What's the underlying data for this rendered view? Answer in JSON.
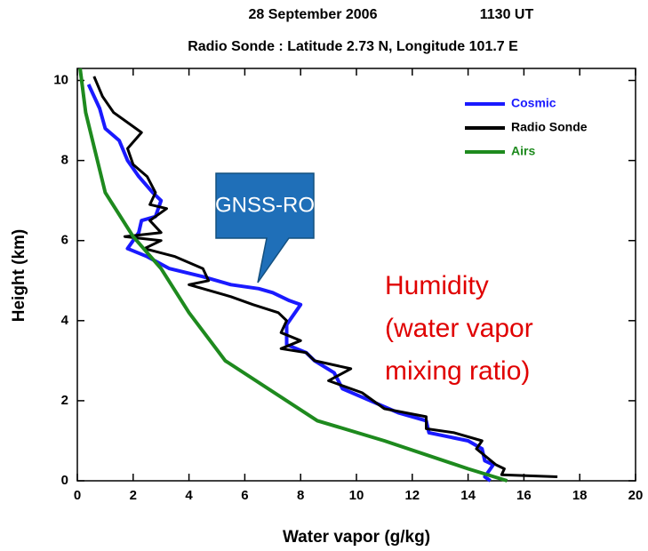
{
  "chart_data": {
    "type": "line",
    "title": "28 September 2006",
    "title_time": "1130 UT",
    "subtitle": "Radio Sonde :  Latitude 2.73 N, Longitude 101.7 E",
    "xlabel": "Water vapor  (g/kg)",
    "ylabel": "Height  (km)",
    "xlim": [
      0,
      20
    ],
    "xticks": [
      0,
      2,
      4,
      6,
      8,
      10,
      12,
      14,
      16,
      18,
      20
    ],
    "ylim": [
      0,
      10.3
    ],
    "yticks": [
      0,
      2,
      4,
      6,
      8,
      10
    ],
    "legend": "upper right",
    "series": [
      {
        "name": "Cosmic",
        "color": "#1a1aff",
        "x": [
          0.4,
          0.8,
          1.0,
          1.5,
          1.8,
          2.2,
          2.7,
          3.0,
          2.8,
          2.3,
          2.2,
          1.8,
          2.5,
          3.3,
          4.5,
          5.5,
          6.5,
          7.0,
          7.6,
          8.0,
          7.5,
          7.5,
          8.2,
          8.5,
          9.2,
          9.5,
          10.5,
          11.5,
          12.5,
          12.6,
          14.0,
          14.5,
          14.6,
          14.9,
          14.6,
          14.8
        ],
        "values": [
          9.9,
          9.3,
          8.8,
          8.5,
          8.0,
          7.6,
          7.2,
          7.0,
          6.6,
          6.5,
          6.2,
          5.8,
          5.6,
          5.3,
          5.1,
          4.9,
          4.8,
          4.7,
          4.5,
          4.4,
          3.9,
          3.4,
          3.2,
          3.0,
          2.7,
          2.3,
          2.0,
          1.7,
          1.5,
          1.2,
          1.0,
          0.8,
          0.5,
          0.4,
          0.1,
          0.0
        ]
      },
      {
        "name": "Radio Sonde",
        "color": "#000000",
        "x": [
          0.6,
          0.9,
          1.3,
          1.9,
          2.3,
          1.8,
          2.0,
          2.5,
          2.8,
          2.6,
          3.2,
          2.6,
          3.0,
          1.7,
          3.0,
          2.4,
          3.5,
          4.5,
          4.7,
          4.0,
          5.5,
          6.3,
          7.2,
          7.5,
          7.3,
          8.0,
          7.3,
          8.2,
          8.5,
          9.8,
          9.0,
          10.2,
          11.0,
          12.5,
          12.5,
          13.5,
          14.5,
          14.3,
          15.0,
          15.3,
          15.2,
          17.2
        ],
        "values": [
          10.1,
          9.6,
          9.2,
          8.9,
          8.7,
          8.3,
          7.9,
          7.6,
          7.2,
          6.9,
          6.8,
          6.5,
          6.2,
          6.1,
          6.0,
          5.8,
          5.6,
          5.3,
          5.0,
          4.9,
          4.6,
          4.4,
          4.2,
          4.0,
          3.7,
          3.5,
          3.3,
          3.2,
          3.0,
          2.8,
          2.5,
          2.2,
          1.8,
          1.6,
          1.3,
          1.2,
          1.0,
          0.8,
          0.4,
          0.3,
          0.15,
          0.1
        ]
      },
      {
        "name": "Airs",
        "color": "#1e8a1e",
        "x": [
          0.1,
          0.3,
          1.0,
          2.0,
          3.0,
          4.0,
          5.3,
          8.6,
          11.0,
          14.0,
          15.4
        ],
        "values": [
          10.3,
          9.2,
          7.2,
          6.1,
          5.3,
          4.2,
          3.0,
          1.5,
          1.0,
          0.3,
          0.0
        ]
      }
    ],
    "callout": "GNSS-RO",
    "annotation": [
      "Humidity",
      "(water vapor",
      "mixing ratio)"
    ]
  }
}
